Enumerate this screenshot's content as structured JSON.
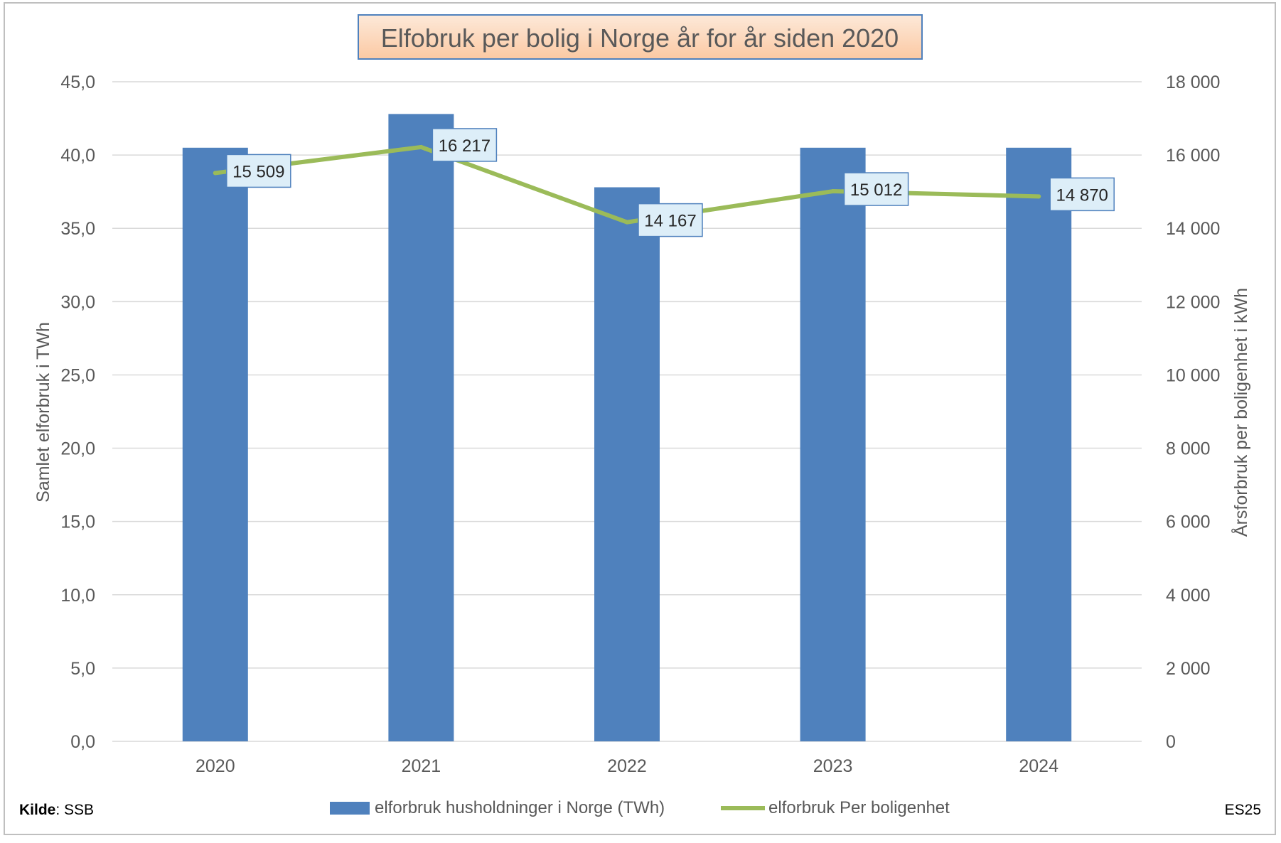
{
  "chart_data": {
    "type": "bar",
    "title": "Elfobruk per bolig i Norge år for år siden 2020",
    "categories": [
      "2020",
      "2021",
      "2022",
      "2023",
      "2024"
    ],
    "series": [
      {
        "name": "elforbruk husholdninger i Norge (TWh)",
        "type": "bar",
        "axis": "left",
        "values": [
          40.5,
          42.8,
          37.8,
          40.5,
          40.5
        ],
        "color": "#4f81bd"
      },
      {
        "name": "elforbruk Per boligenhet",
        "type": "line",
        "axis": "right",
        "values": [
          15509,
          16217,
          14167,
          15012,
          14870
        ],
        "color": "#9bbb59",
        "labels": [
          "15 509",
          "16 217",
          "14 167",
          "15 012",
          "14 870"
        ]
      }
    ],
    "ylabel": "Samlet elforbruk i TWh",
    "ylim": [
      0,
      45
    ],
    "yticks": [
      "0,0",
      "5,0",
      "10,0",
      "15,0",
      "20,0",
      "25,0",
      "30,0",
      "35,0",
      "40,0",
      "45,0"
    ],
    "y2label": "Årsforbruk per boligenhet i kWh",
    "y2lim": [
      0,
      18000
    ],
    "y2ticks": [
      "0",
      "2 000",
      "4 000",
      "6 000",
      "8 000",
      "10 000",
      "12 000",
      "14 000",
      "16 000",
      "18 000"
    ],
    "grid": true,
    "legend_position": "bottom",
    "colors": {
      "title_fill": "#fcd5b5",
      "title_border": "#4f81bd",
      "label_fill": "#ddeef8",
      "label_border": "#4f81bd",
      "grid": "#d9d9d9",
      "axis_text": "#595959"
    }
  },
  "footer": {
    "source_label": "Kilde",
    "source_value": ": SSB",
    "tag": "ES25"
  }
}
